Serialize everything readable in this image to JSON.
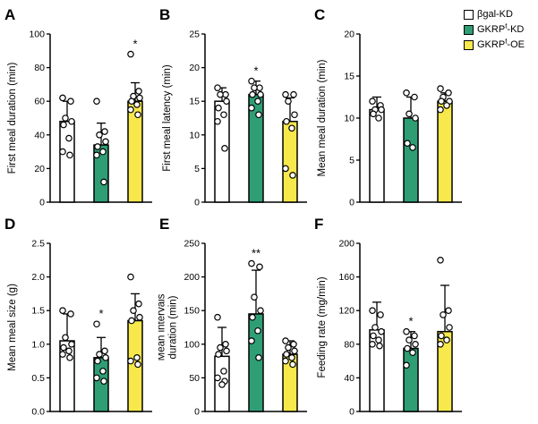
{
  "legend": {
    "items": [
      {
        "pre": "βgal-KD",
        "sup": "",
        "post": ""
      },
      {
        "pre": "GKRP",
        "sup": "t",
        "post": "-KD"
      },
      {
        "pre": "GKRP",
        "sup": "t",
        "post": "-OE"
      }
    ],
    "colors": [
      "#ffffff",
      "#2f9e75",
      "#f7e84b"
    ]
  },
  "chart_data": [
    {
      "type": "bar",
      "panel": "A",
      "ylabel": "First meal duration (min)",
      "ylim": [
        0,
        100
      ],
      "yticks": [
        0,
        20,
        40,
        60,
        80,
        100
      ],
      "tick_decimals": 0,
      "categories": [
        "βgal-KD",
        "GKRPt-KD",
        "GKRPt-OE"
      ],
      "values": [
        48,
        34,
        60
      ],
      "errors_top": [
        60,
        47,
        71
      ],
      "sig": [
        "",
        "",
        "*"
      ],
      "dots": [
        [
          62,
          60,
          50,
          48,
          46,
          38,
          30,
          28
        ],
        [
          60,
          42,
          40,
          36,
          33,
          30,
          28,
          12
        ],
        [
          88,
          66,
          63,
          62,
          60,
          58,
          55,
          52
        ]
      ]
    },
    {
      "type": "bar",
      "panel": "B",
      "ylabel": "First meal latency (min)",
      "ylim": [
        0,
        25
      ],
      "yticks": [
        0,
        5,
        10,
        15,
        20,
        25
      ],
      "tick_decimals": 0,
      "categories": [
        "βgal-KD",
        "GKRPt-KD",
        "GKRPt-OE"
      ],
      "values": [
        15,
        16,
        12
      ],
      "errors_top": [
        17,
        18,
        15.5
      ],
      "sig": [
        "",
        "*",
        ""
      ],
      "dots": [
        [
          17,
          16,
          16,
          15,
          14,
          13,
          12,
          8
        ],
        [
          18,
          17,
          17,
          16,
          16,
          15,
          14,
          13
        ],
        [
          16,
          16,
          15,
          13,
          12,
          11,
          5,
          4
        ]
      ]
    },
    {
      "type": "bar",
      "panel": "C",
      "ylabel": "Mean meal duration (min)",
      "ylim": [
        0,
        20
      ],
      "yticks": [
        0,
        5,
        10,
        15,
        20
      ],
      "tick_decimals": 0,
      "categories": [
        "βgal-KD",
        "GKRPt-KD",
        "GKRPt-OE"
      ],
      "values": [
        11,
        10,
        12
      ],
      "errors_top": [
        12.5,
        12.5,
        13
      ],
      "sig": [
        "",
        "",
        ""
      ],
      "dots": [
        [
          12,
          11.5,
          11,
          11,
          10.5,
          10
        ],
        [
          13,
          12.5,
          10.5,
          10,
          7,
          6.5
        ],
        [
          13.5,
          13,
          12.5,
          12,
          12,
          11.5,
          11
        ]
      ]
    },
    {
      "type": "bar",
      "panel": "D",
      "ylabel": "Mean meal size (g)",
      "ylim": [
        0,
        2.5
      ],
      "yticks": [
        0,
        0.5,
        1,
        1.5,
        2,
        2.5
      ],
      "tick_decimals": 1,
      "categories": [
        "βgal-KD",
        "GKRPt-KD",
        "GKRPt-OE"
      ],
      "values": [
        1.05,
        0.8,
        1.35
      ],
      "errors_top": [
        1.45,
        1.1,
        1.75
      ],
      "sig": [
        "",
        "*",
        ""
      ],
      "dots": [
        [
          1.5,
          1.45,
          1.1,
          1.0,
          0.95,
          0.9,
          0.85,
          0.8
        ],
        [
          1.3,
          0.9,
          0.85,
          0.8,
          0.75,
          0.6,
          0.5,
          0.45
        ],
        [
          2.0,
          1.6,
          1.5,
          1.4,
          1.35,
          0.8,
          0.75,
          0.7
        ]
      ]
    },
    {
      "type": "bar",
      "panel": "E",
      "ylabel": "Mean intervals\nduration (min)",
      "ylim": [
        0,
        250
      ],
      "yticks": [
        0,
        50,
        100,
        150,
        200,
        250
      ],
      "tick_decimals": 0,
      "categories": [
        "βgal-KD",
        "GKRPt-KD",
        "GKRPt-OE"
      ],
      "values": [
        82,
        145,
        85
      ],
      "errors_top": [
        125,
        210,
        105
      ],
      "sig": [
        "",
        "**",
        ""
      ],
      "dots": [
        [
          140,
          100,
          95,
          90,
          85,
          60,
          50,
          45,
          40
        ],
        [
          220,
          215,
          170,
          150,
          140,
          120,
          105,
          80
        ],
        [
          105,
          100,
          95,
          90,
          85,
          80,
          75,
          70
        ]
      ]
    },
    {
      "type": "bar",
      "panel": "F",
      "ylabel": "Feeding rate (mg/min)",
      "ylim": [
        0,
        200
      ],
      "yticks": [
        0,
        40,
        80,
        120,
        160,
        200
      ],
      "tick_decimals": 0,
      "categories": [
        "βgal-KD",
        "GKRPt-KD",
        "GKRPt-OE"
      ],
      "values": [
        97,
        75,
        95
      ],
      "errors_top": [
        130,
        95,
        150
      ],
      "sig": [
        "",
        "*",
        ""
      ],
      "dots": [
        [
          120,
          115,
          100,
          95,
          90,
          85,
          80,
          78
        ],
        [
          95,
          90,
          85,
          80,
          75,
          70,
          55
        ],
        [
          180,
          120,
          115,
          100,
          90,
          85,
          80
        ]
      ]
    }
  ]
}
